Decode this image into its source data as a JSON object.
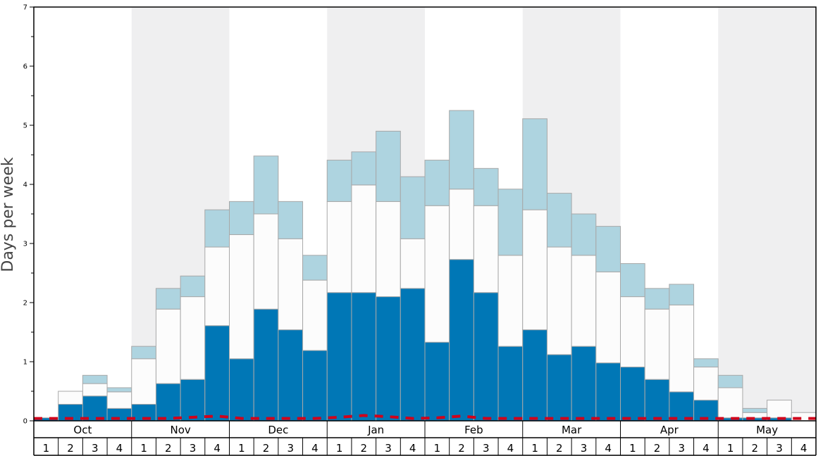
{
  "chart_data": {
    "type": "bar",
    "stacked": true,
    "ylabel": "Days per week",
    "ylim": [
      0,
      7
    ],
    "yticks": [
      "0",
      "1",
      "2",
      "3",
      "4",
      "5",
      "6",
      "7"
    ],
    "months": [
      "Oct",
      "Nov",
      "Dec",
      "Jan",
      "Feb",
      "Mar",
      "Apr",
      "May"
    ],
    "weeks": [
      "1",
      "2",
      "3",
      "4"
    ],
    "shaded_months": [
      "Nov",
      "Jan",
      "Mar",
      "May"
    ],
    "colors": {
      "dark": "#0077b6",
      "mid": "#fcfcfc",
      "light": "#aed4e0",
      "stroke": "#a8a8a8",
      "shade": "#efeff0",
      "line": "#d0021b"
    },
    "series": [
      {
        "values": [
          0.05,
          0.28,
          0.42,
          0.21,
          0.28,
          0.63,
          0.7,
          1.61,
          1.05,
          1.89,
          1.54,
          1.19,
          2.17,
          2.17,
          2.1,
          2.24,
          1.33,
          2.73,
          2.17,
          1.26,
          1.54,
          1.12,
          1.26,
          0.98,
          0.91,
          0.7,
          0.49,
          0.35,
          0.05,
          0.05,
          0.05,
          0.0
        ]
      },
      {
        "values": [
          0.0,
          0.22,
          0.21,
          0.28,
          0.77,
          1.26,
          1.4,
          1.33,
          2.1,
          1.61,
          1.54,
          1.19,
          1.54,
          1.82,
          1.61,
          0.84,
          2.31,
          1.19,
          1.47,
          1.54,
          2.03,
          1.82,
          1.54,
          1.54,
          1.19,
          1.19,
          1.47,
          0.56,
          0.51,
          0.09,
          0.3,
          0.14
        ]
      },
      {
        "values": [
          0.0,
          0.0,
          0.14,
          0.07,
          0.21,
          0.35,
          0.35,
          0.63,
          0.56,
          0.98,
          0.63,
          0.42,
          0.7,
          0.56,
          1.19,
          1.05,
          0.77,
          1.33,
          0.63,
          1.12,
          1.54,
          0.91,
          0.7,
          0.77,
          0.56,
          0.35,
          0.35,
          0.14,
          0.21,
          0.07,
          0.0,
          0.0
        ]
      }
    ],
    "line": {
      "style": "dashed",
      "values": [
        0.04,
        0.04,
        0.04,
        0.04,
        0.04,
        0.04,
        0.06,
        0.08,
        0.04,
        0.04,
        0.04,
        0.04,
        0.06,
        0.09,
        0.07,
        0.04,
        0.05,
        0.08,
        0.04,
        0.04,
        0.04,
        0.04,
        0.04,
        0.04,
        0.04,
        0.04,
        0.04,
        0.04,
        0.04,
        0.04,
        0.04,
        0.04
      ]
    }
  }
}
